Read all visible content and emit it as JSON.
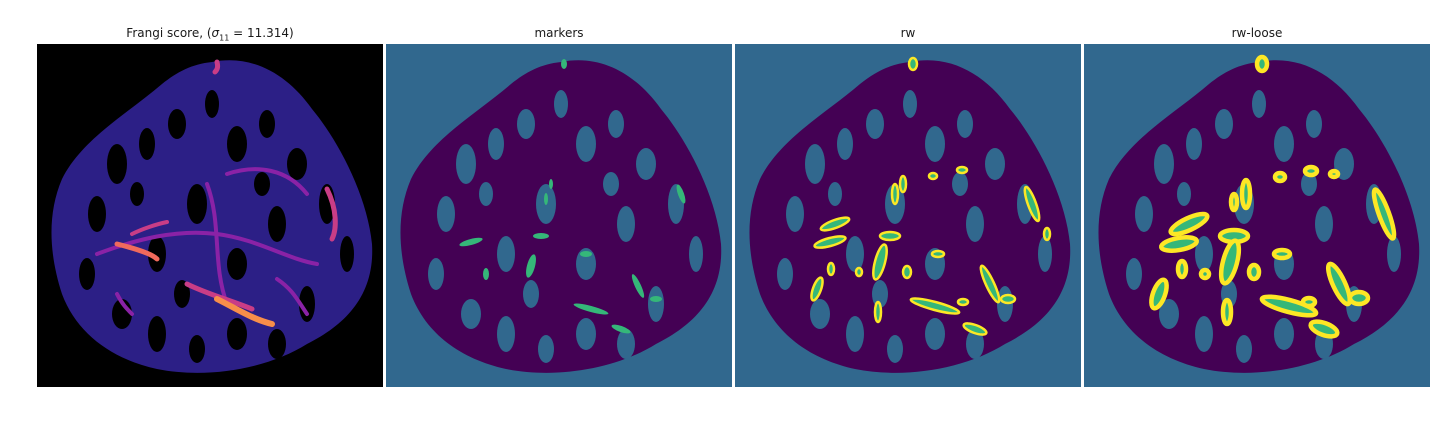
{
  "panels": [
    {
      "id": "frangi",
      "title_prefix": "Frangi score, (",
      "title_sigma": "σ",
      "title_sub": "11",
      "title_value": " = 11.314)",
      "colormap": "magma"
    },
    {
      "id": "markers",
      "title": "markers",
      "colormap": "viridis"
    },
    {
      "id": "rw",
      "title": "rw",
      "colormap": "viridis"
    },
    {
      "id": "rw-loose",
      "title": "rw-loose",
      "colormap": "viridis"
    }
  ],
  "colors": {
    "background_segmented": "#31688e",
    "tissue": "#440154",
    "marker": "#35b779",
    "vessel_outline": "#fde725",
    "frangi_bg": "#000000",
    "frangi_low": "#2c1f86",
    "frangi_mid": "#8a22a6",
    "frangi_high": "#f88e4a"
  }
}
